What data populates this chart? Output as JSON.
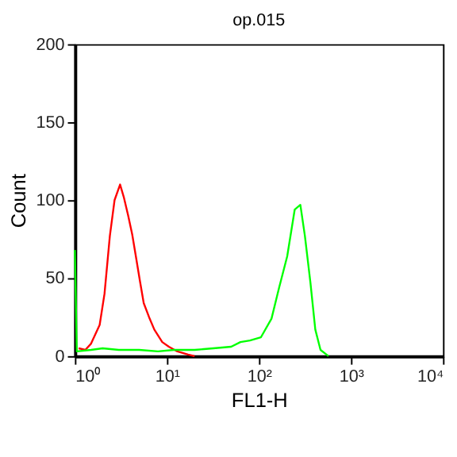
{
  "chart_data": {
    "type": "line",
    "title": "op.015",
    "xlabel": "FL1-H",
    "ylabel": "Count",
    "log": "x",
    "grid": false,
    "legend": false,
    "marker": "none",
    "line_style": "solid",
    "xlim": [
      1,
      10000
    ],
    "xticks": [
      {
        "value": 1,
        "label": "10⁰"
      },
      {
        "value": 10,
        "label": "10¹"
      },
      {
        "value": 100,
        "label": "10²"
      },
      {
        "value": 1000,
        "label": "10³"
      },
      {
        "value": 10000,
        "label": "10⁴"
      }
    ],
    "ylim": [
      0,
      200
    ],
    "yticks": [
      0,
      50,
      100,
      150,
      200
    ],
    "series": [
      {
        "color": "#ff0000",
        "x": [
          1.1,
          1.3,
          1.5,
          1.86,
          2.1,
          2.4,
          2.7,
          3.1,
          3.4,
          3.8,
          4.2,
          4.6,
          5.1,
          5.6,
          6.4,
          7.3,
          8.9,
          10.5,
          13,
          17,
          20
        ],
        "values": [
          5,
          4,
          8,
          20,
          40,
          77,
          100,
          110,
          102,
          90,
          78,
          64,
          48,
          34,
          25,
          17,
          9,
          6,
          3,
          1,
          0
        ]
      },
      {
        "color": "#00ff00",
        "x": [
          1,
          1.05,
          1.5,
          2,
          3,
          5,
          8,
          12,
          20,
          32,
          50,
          63,
          80,
          105,
          137,
          166,
          203,
          245,
          282,
          316,
          363,
          410,
          467,
          570
        ],
        "values": [
          68,
          3,
          4,
          5,
          4,
          4,
          3,
          4,
          4,
          5,
          6,
          9,
          10,
          12,
          24,
          44,
          64,
          94,
          97,
          77,
          47,
          17,
          4,
          0
        ]
      }
    ]
  }
}
